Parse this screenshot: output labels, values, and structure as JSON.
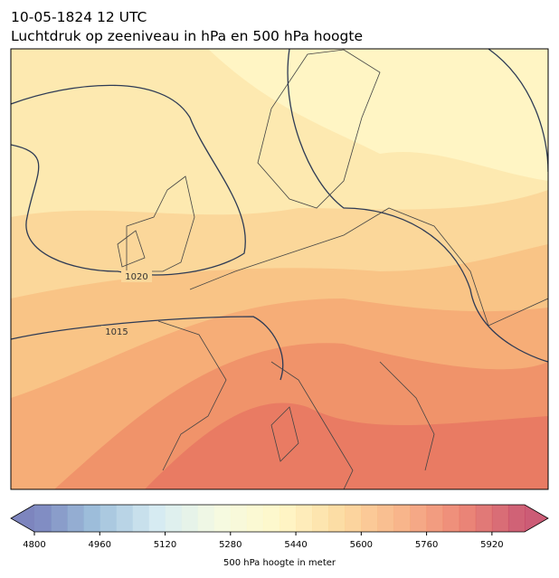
{
  "header": {
    "date": "10-05-1824 12 UTC",
    "title": "Luchtdruk op zeeniveau in hPa en 500 hPa hoogte"
  },
  "map": {
    "isobars": [
      1020,
      1015
    ]
  },
  "colorbar": {
    "label": "500 hPa hoogte in meter",
    "lim": [
      4800,
      6000
    ],
    "step": 40,
    "ticks": [
      4800,
      4960,
      5120,
      5280,
      5440,
      5600,
      5760,
      5920
    ],
    "colormap": [
      "#6670b3",
      "#8fb6d6",
      "#cfe8f0",
      "#f3f9dc",
      "#fff7c0",
      "#fcd592",
      "#f7a877",
      "#e9715f",
      "#c3405e"
    ]
  }
}
